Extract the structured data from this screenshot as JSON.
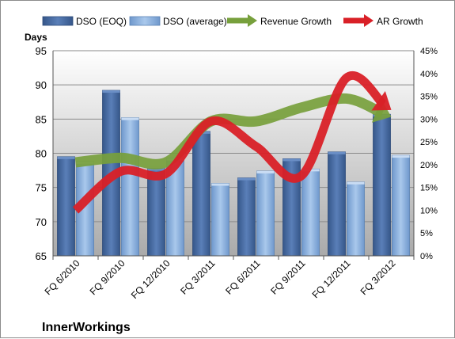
{
  "chart_data": {
    "type": "bar",
    "title": "",
    "company": "InnerWorkings",
    "categories": [
      "FQ 6/2010",
      "FQ 9/2010",
      "FQ 12/2010",
      "FQ 3/2011",
      "FQ 6/2011",
      "FQ 9/2011",
      "FQ 12/2011",
      "FQ 3/2012"
    ],
    "ylabel": "Days",
    "ylim": [
      65,
      95
    ],
    "yticks": [
      "65",
      "70",
      "75",
      "80",
      "85",
      "90",
      "95"
    ],
    "y2lim": [
      0,
      45
    ],
    "y2ticks": [
      "0%",
      "5%",
      "10%",
      "15%",
      "20%",
      "25%",
      "30%",
      "35%",
      "40%",
      "45%"
    ],
    "grid": true,
    "legend_position": "top",
    "bar_series": [
      {
        "name": "DSO (EOQ)",
        "color": "#4a6fa5",
        "values": [
          79.5,
          89.2,
          77.8,
          83.2,
          76.4,
          79.2,
          80.2,
          85.7
        ]
      },
      {
        "name": "DSO (average)",
        "color": "#8fb3de",
        "values": [
          78.8,
          85.2,
          79.3,
          75.6,
          77.4,
          77.7,
          75.8,
          79.7
        ]
      }
    ],
    "line_series": [
      {
        "name": "Revenue Growth",
        "color": "#77a03c",
        "axis": "right",
        "values": [
          20.5,
          21.5,
          20.5,
          29.5,
          29.5,
          32.5,
          34.5,
          30.5
        ]
      },
      {
        "name": "AR Growth",
        "color": "#d92027",
        "axis": "right",
        "values": [
          10.0,
          18.5,
          18.0,
          29.5,
          24.0,
          17.5,
          39.0,
          32.0
        ]
      }
    ]
  },
  "legend": {
    "dso_eoq": "DSO (EOQ)",
    "dso_avg": "DSO (average)",
    "revenue_growth": "Revenue Growth",
    "ar_growth": "AR Growth"
  },
  "footer": {
    "company": "InnerWorkings"
  }
}
